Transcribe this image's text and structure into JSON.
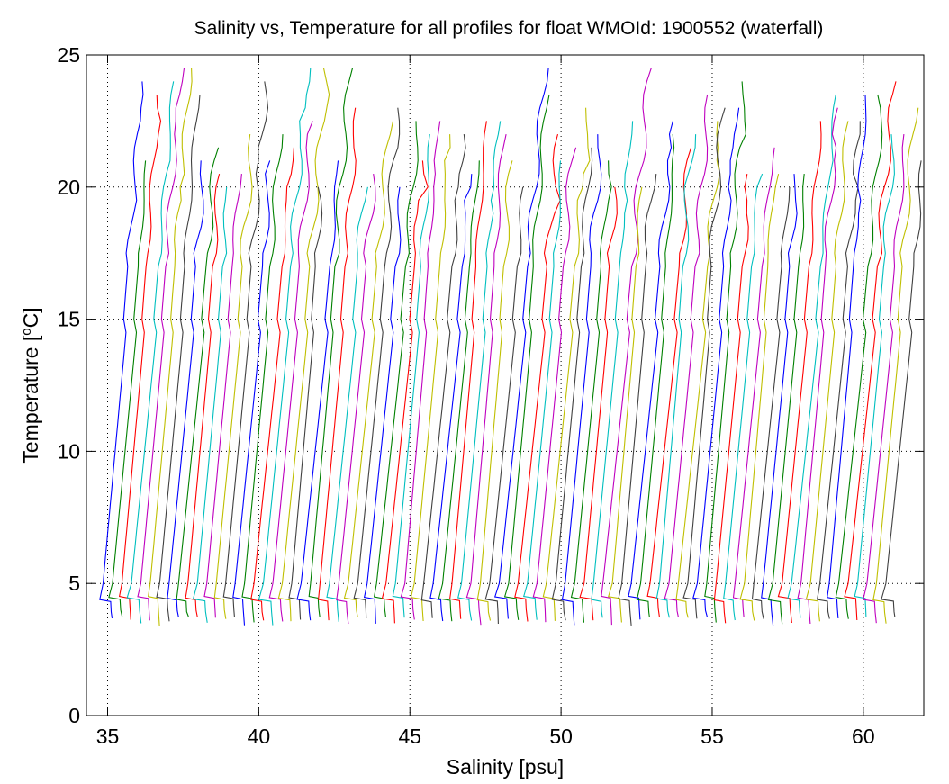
{
  "chart_data": {
    "type": "line",
    "title": "Salinity vs, Temperature for all profiles for float WMOId: 1900552 (waterfall)",
    "xlabel": "Salinity [psu]",
    "ylabel_main": "Temperature [",
    "ylabel_sup": "o",
    "ylabel_end": "C]",
    "xlim": [
      34.3,
      62
    ],
    "ylim": [
      0,
      25
    ],
    "xticks": [
      35,
      40,
      45,
      50,
      55,
      60
    ],
    "yticks": [
      0,
      5,
      10,
      15,
      20,
      25
    ],
    "grid": true,
    "grid_lines_x": [
      35,
      40,
      45,
      50,
      55,
      60
    ],
    "grid_lines_y": [
      5,
      10,
      15,
      20
    ],
    "profile_count": 84,
    "first_profile_surface_salinity": 34.85,
    "profile_offset_psu": 0.312,
    "surface_temperature_range": [
      20,
      25
    ],
    "bottom_temperature_range": [
      3.4,
      4.5
    ],
    "color_cycle": [
      "#0000ff",
      "#008000",
      "#ff0000",
      "#00bfbf",
      "#bf00bf",
      "#bfbf00",
      "#404040"
    ],
    "axes_color": "#000000",
    "grid_color": "#000000"
  }
}
